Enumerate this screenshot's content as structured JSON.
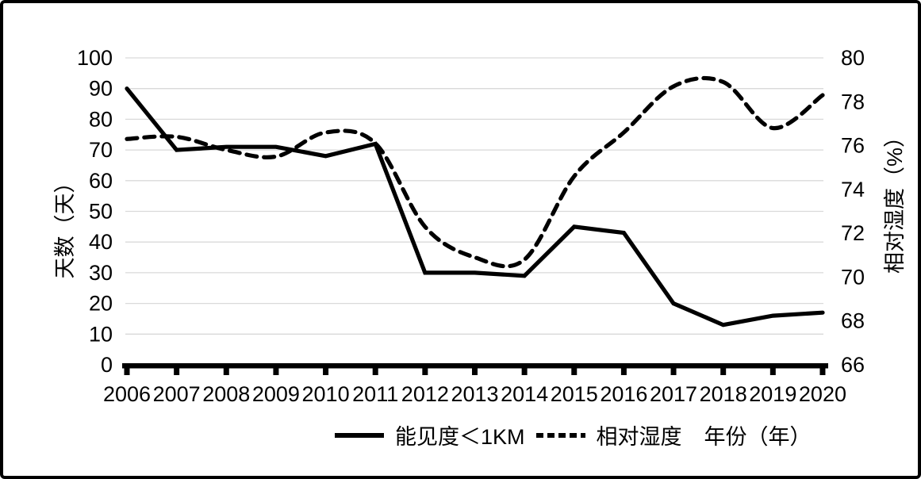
{
  "frame": {
    "background": "#ffffff",
    "border_color": "#000000"
  },
  "chart_data": {
    "type": "line",
    "title": "",
    "categories": [
      "2006",
      "2007",
      "2008",
      "2009",
      "2010",
      "2011",
      "2012",
      "2013",
      "2014",
      "2015",
      "2016",
      "2017",
      "2018",
      "2019",
      "2020"
    ],
    "series": [
      {
        "name": "能见度＜1KM",
        "axis": "left",
        "line_style": "solid",
        "color": "#000000",
        "values": [
          90,
          70,
          71,
          71,
          68,
          72,
          30,
          30,
          29,
          45,
          43,
          20,
          13,
          16,
          17
        ]
      },
      {
        "name": "相对湿度",
        "axis": "right",
        "line_style": "dashed",
        "color": "#000000",
        "values": [
          76.3,
          76.4,
          75.8,
          75.5,
          76.6,
          76.1,
          72.3,
          70.9,
          70.8,
          74.6,
          76.6,
          78.7,
          78.9,
          76.8,
          78.3
        ]
      }
    ],
    "left_axis": {
      "title": "天数（天）",
      "min": 0,
      "max": 100,
      "step": 10,
      "tick_labels": [
        "0",
        "10",
        "20",
        "30",
        "40",
        "50",
        "60",
        "70",
        "80",
        "90",
        "100"
      ]
    },
    "right_axis": {
      "title": "相对湿度（%）",
      "min": 66,
      "max": 80,
      "step": 2,
      "tick_labels": [
        "66",
        "68",
        "70",
        "72",
        "74",
        "76",
        "78",
        "80"
      ]
    },
    "x_axis": {
      "title": "年份（年）",
      "tick_labels": [
        "2006",
        "2007",
        "2008",
        "2009",
        "2010",
        "2011",
        "2012",
        "2013",
        "2014",
        "2015",
        "2016",
        "2017",
        "2018",
        "2019",
        "2020"
      ]
    },
    "legend": {
      "position": "bottom",
      "items": [
        {
          "label": "能见度＜1KM",
          "style": "solid"
        },
        {
          "label": "相对湿度",
          "style": "dashed"
        }
      ]
    },
    "grid": {
      "show": true,
      "color": "#d9d9d9"
    },
    "axis_color": "#000000"
  }
}
